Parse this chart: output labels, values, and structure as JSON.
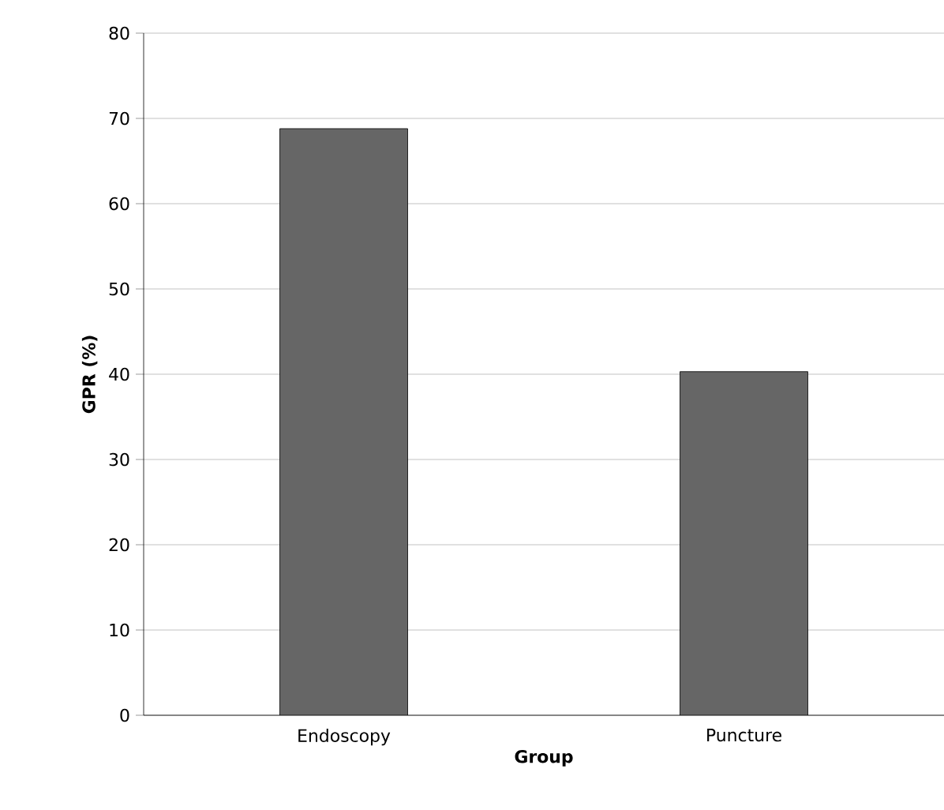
{
  "chart_data": {
    "type": "bar",
    "xlabel": "Group",
    "ylabel": "GPR (%)",
    "categories": [
      "Endoscopy",
      "Puncture"
    ],
    "values": [
      68.8,
      40.3
    ],
    "color": "#666666",
    "ylim": [
      0,
      80
    ],
    "yticks": [
      0,
      10,
      20,
      30,
      40,
      50,
      60,
      70,
      80
    ],
    "grid": "y"
  }
}
